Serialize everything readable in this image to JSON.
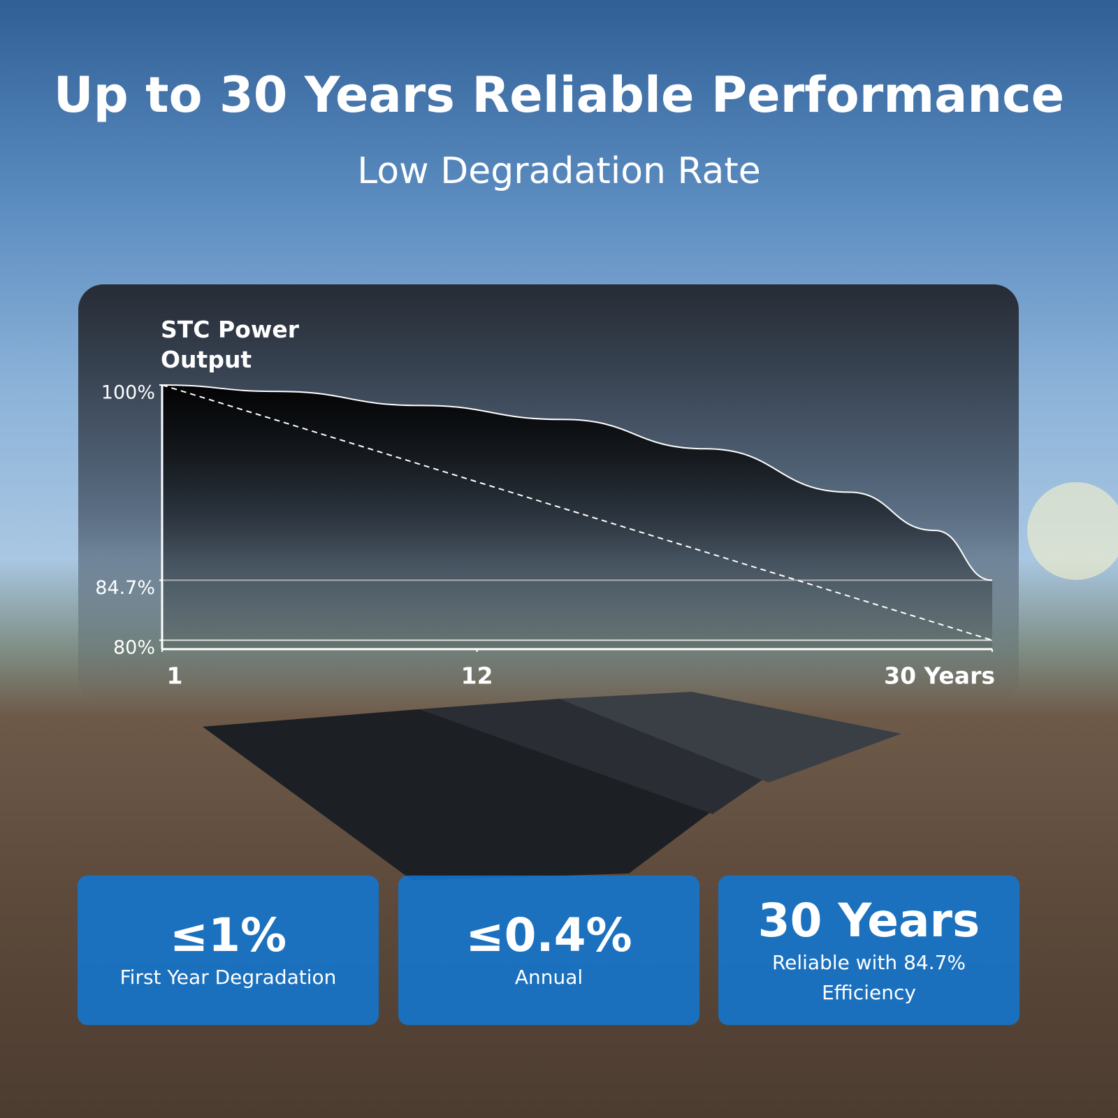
{
  "chart_data": {
    "type": "line",
    "title": "Up to 30 Years Reliable Performance",
    "subtitle": "Low Degradation Rate",
    "y_label": "STC Power Output",
    "xlim": [
      1,
      30
    ],
    "xticks": [
      1,
      12,
      {
        "value": 30,
        "label": "30 Years"
      }
    ],
    "ylim": [
      79.3,
      100
    ],
    "yticks": [
      {
        "value": 100,
        "label": "100%"
      },
      {
        "value": 84.7,
        "label": "84.7%"
      },
      {
        "value": 80,
        "label": "80%"
      }
    ],
    "hlines": [
      84.7,
      80
    ],
    "series": [
      {
        "color": "#ffffff",
        "fill": "#1f78c1",
        "x": [
          1,
          5,
          10,
          15,
          20,
          25,
          28,
          30
        ],
        "values": [
          100,
          99.5,
          98.4,
          97.3,
          95,
          91.6,
          88.6,
          84.7
        ]
      },
      {
        "color": "#ffffff",
        "dashed": true,
        "x": [
          1,
          30
        ],
        "values": [
          100,
          80
        ]
      }
    ]
  },
  "stats": [
    {
      "value": "≤1%",
      "label": "First Year Degradation"
    },
    {
      "value": "≤0.4%",
      "label": "Annual"
    },
    {
      "value": "30 Years",
      "label": "Reliable with 84.7% Efficiency"
    }
  ]
}
